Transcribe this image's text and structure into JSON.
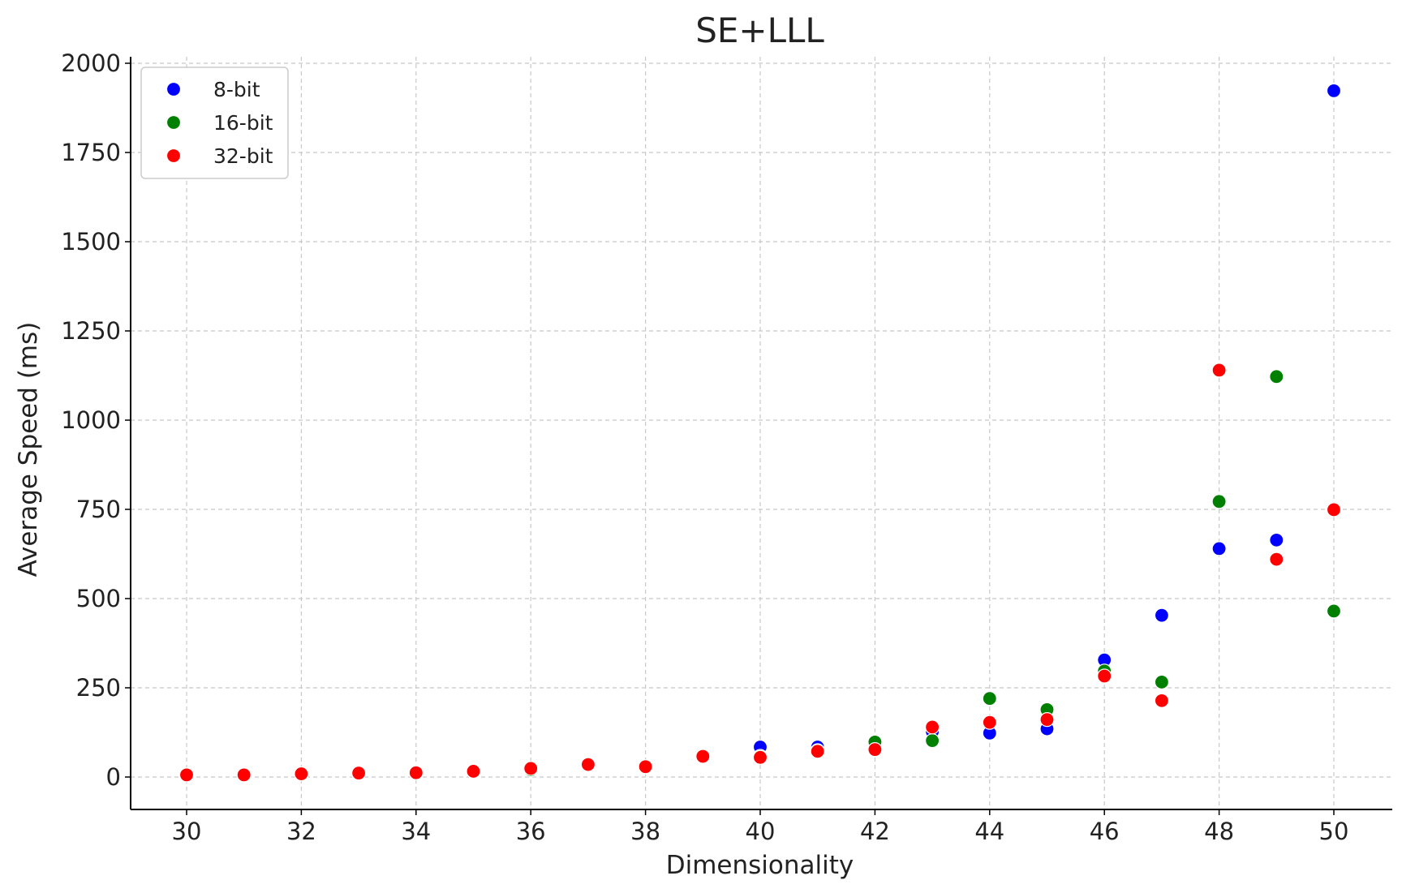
{
  "chart_data": {
    "type": "scatter",
    "title": "SE+LLL",
    "xlabel": "Dimensionality",
    "ylabel": "Average Speed (ms)",
    "xlim": [
      29,
      51
    ],
    "ylim": [
      -90,
      2020
    ],
    "xticks": [
      30,
      32,
      34,
      36,
      38,
      40,
      42,
      44,
      46,
      48,
      50
    ],
    "yticks": [
      0,
      250,
      500,
      750,
      1000,
      1250,
      1500,
      1750,
      2000
    ],
    "grid": true,
    "legend_position": "top-left",
    "series": [
      {
        "name": "8-bit",
        "color": "#0000ff",
        "x": [
          30,
          31,
          32,
          33,
          34,
          35,
          36,
          37,
          38,
          39,
          40,
          41,
          42,
          43,
          44,
          45,
          46,
          47,
          48,
          49,
          50
        ],
        "y": [
          6,
          6,
          9,
          11,
          12,
          16,
          22,
          34,
          28,
          58,
          84,
          84,
          90,
          127,
          123,
          135,
          328,
          453,
          640,
          664,
          1923
        ]
      },
      {
        "name": "16-bit",
        "color": "#008000",
        "x": [
          30,
          31,
          32,
          33,
          34,
          35,
          36,
          37,
          38,
          39,
          40,
          41,
          42,
          43,
          44,
          45,
          46,
          47,
          48,
          49,
          50
        ],
        "y": [
          6,
          6,
          9,
          11,
          12,
          16,
          20,
          34,
          28,
          56,
          58,
          74,
          98,
          102,
          220,
          189,
          297,
          266,
          772,
          1122,
          465
        ]
      },
      {
        "name": "32-bit",
        "color": "#ff0000",
        "x": [
          30,
          31,
          32,
          33,
          34,
          35,
          36,
          37,
          38,
          39,
          40,
          41,
          42,
          43,
          44,
          45,
          46,
          47,
          48,
          49,
          50
        ],
        "y": [
          6,
          6,
          9,
          11,
          12,
          16,
          24,
          35,
          29,
          58,
          55,
          72,
          77,
          140,
          153,
          161,
          283,
          214,
          1140,
          610,
          749
        ]
      }
    ]
  }
}
